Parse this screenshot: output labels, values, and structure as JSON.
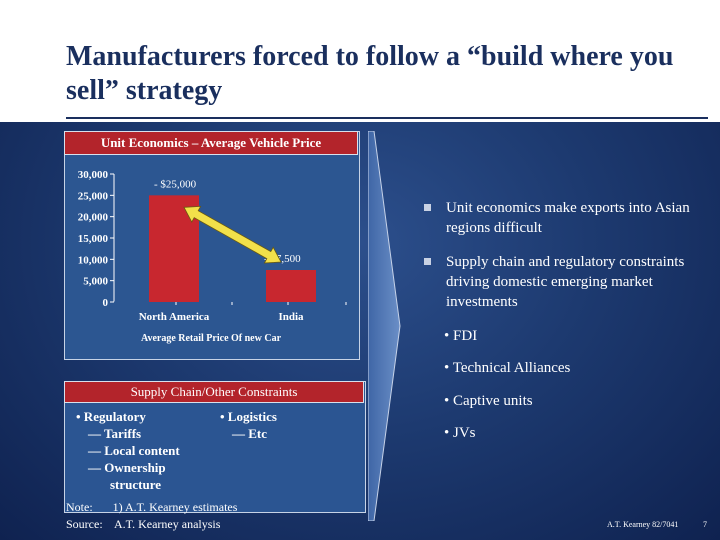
{
  "title": "Manufacturers forced to follow a “build where you sell” strategy",
  "chart_panel": {
    "header": "Unit Economics – Average Vehicle Price",
    "caption": "Average Retail Price Of new Car"
  },
  "chart_data": {
    "type": "bar",
    "title": "Unit Economics – Average Vehicle Price",
    "categories": [
      "North America",
      "India"
    ],
    "values": [
      25000,
      7500
    ],
    "data_labels": [
      "$25,000",
      "$7,500"
    ],
    "xlabel": "Average Retail Price Of new Car",
    "ylabel": "",
    "ylim": [
      0,
      30000
    ],
    "yticks": [
      "0",
      "5,000",
      "10,000",
      "15,000",
      "20,000",
      "25,000",
      "30,000"
    ],
    "bar_color": "#c8272f",
    "grid": false
  },
  "supply_chain": {
    "header": "Supply Chain/Other Constraints",
    "left_items": [
      "• Regulatory",
      "— Tariffs",
      "— Local content",
      "— Ownership",
      "structure"
    ],
    "right_items": [
      "• Logistics",
      "— Etc"
    ]
  },
  "bullets": [
    "Unit economics make exports into Asian regions difficult",
    "Supply chain and regulatory constraints driving domestic emerging market investments"
  ],
  "sub_bullets": [
    "FDI",
    "Technical Alliances",
    "Captive units",
    "JVs"
  ],
  "notes": {
    "note_label": "Note:",
    "note_text": "1) A.T. Kearney estimates",
    "source_label": "Source:",
    "source_text": "A.T. Kearney analysis"
  },
  "footer": {
    "doc_id": "A.T. Kearney 82/7041",
    "page": "7"
  },
  "colors": {
    "background": "#1d3a70",
    "header_red": "#b3242b",
    "arrow_yellow": "#f2e04a",
    "title_navy": "#1a2f5e"
  }
}
